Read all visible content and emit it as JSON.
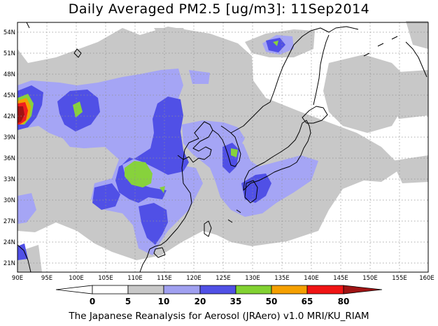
{
  "title": "Daily Averaged PM2.5 [ug/m3]: 11Sep2014",
  "footer": "The Japanese Reanalysis for Aerosol (JRAero) v1.0 MRI/KU_RIAM",
  "lon_labels": [
    "90E",
    "95E",
    "100E",
    "105E",
    "110E",
    "115E",
    "120E",
    "125E",
    "130E",
    "135E",
    "140E",
    "145E",
    "150E",
    "155E",
    "160E"
  ],
  "lat_labels": [
    "21N",
    "24N",
    "27N",
    "30N",
    "33N",
    "36N",
    "39N",
    "42N",
    "45N",
    "48N",
    "51N",
    "54N"
  ],
  "colorbar": {
    "labels": [
      "0",
      "5",
      "10",
      "20",
      "35",
      "50",
      "65",
      "80"
    ],
    "colors": [
      "#ffffff",
      "#c8c8c8",
      "#a0a0f0",
      "#5050e6",
      "#82d232",
      "#f5a000",
      "#f01414",
      "#a01414"
    ]
  },
  "palette": {
    "c5": "#c8c8c8",
    "c10": "#a5a5f5",
    "c20": "#5050e6",
    "c35": "#87d23c",
    "c50": "#f5a000",
    "c65": "#f01e1e",
    "c80": "#a01414"
  }
}
